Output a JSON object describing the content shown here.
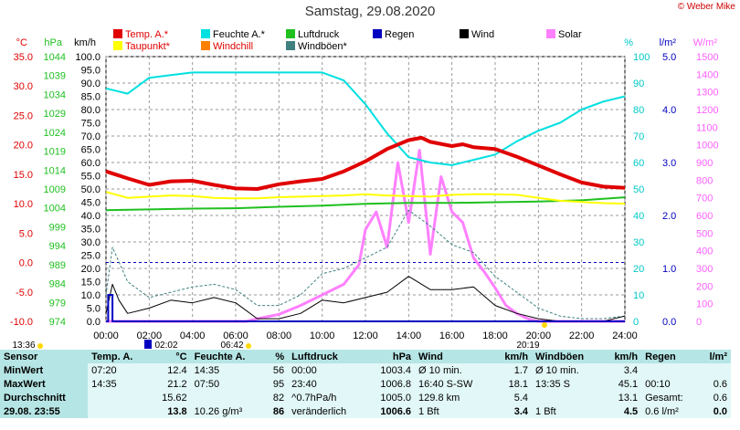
{
  "page": {
    "title": "Samstag, 29.08.2020",
    "credit": "© Weber Mike"
  },
  "legend": [
    {
      "label": "Temp. A.*",
      "color": "#e00000"
    },
    {
      "label": "Feuchte A.*",
      "color": "#00e0e0"
    },
    {
      "label": "Luftdruck",
      "color": "#20c020"
    },
    {
      "label": "Regen",
      "color": "#0000c0"
    },
    {
      "label": "Wind",
      "color": "#000000"
    },
    {
      "label": "Solar",
      "color": "#ff80ff"
    },
    {
      "label": "Taupunkt*",
      "color": "#ffff00"
    },
    {
      "label": "Windchill",
      "color": "#ff8000"
    },
    {
      "label": "Windböen*",
      "color": "#408080"
    }
  ],
  "units": {
    "temp": "°C",
    "hpa": "hPa",
    "kmh": "km/h",
    "pct": "%",
    "lm2": "l/m²",
    "wm2": "W/m²"
  },
  "chart_data": {
    "type": "line",
    "x_label_times": [
      "00:00",
      "02:00",
      "04:00",
      "06:00",
      "08:00",
      "10:00",
      "12:00",
      "14:00",
      "16:00",
      "18:00",
      "20:00",
      "22:00",
      "24:00"
    ],
    "markers": {
      "sunrise": "06:42",
      "sunset": "20:19",
      "left_time": "13:36",
      "marker_time": "02:02"
    },
    "axes": {
      "temp": {
        "label": "°C",
        "ticks": [
          "35.0",
          "30.0",
          "25.0",
          "20.0",
          "15.0",
          "10.0",
          "5.0",
          "0.0",
          "-5.0",
          "-10.0"
        ],
        "range": [
          -10,
          35
        ]
      },
      "hpa": {
        "label": "hPa",
        "ticks": [
          "1044",
          "1039",
          "1034",
          "1029",
          "1024",
          "1019",
          "1014",
          "1009",
          "1004",
          "999",
          "994",
          "989",
          "984",
          "979",
          "974"
        ],
        "range": [
          974,
          1044
        ]
      },
      "kmh": {
        "label": "km/h",
        "ticks": [
          "100.0",
          "95.0",
          "90.0",
          "85.0",
          "80.0",
          "75.0",
          "70.0",
          "65.0",
          "60.0",
          "55.0",
          "50.0",
          "45.0",
          "40.0",
          "35.0",
          "30.0",
          "25.0",
          "20.0",
          "15.0",
          "10.0",
          "5.0",
          "0.0"
        ],
        "range": [
          0,
          100
        ]
      },
      "pct": {
        "label": "%",
        "ticks": [
          "100",
          "90",
          "80",
          "70",
          "60",
          "50",
          "40",
          "30",
          "20",
          "10",
          "0"
        ],
        "range": [
          0,
          100
        ]
      },
      "rain": {
        "label": "l/m²",
        "ticks": [
          "5.0",
          "4.0",
          "3.0",
          "2.0",
          "1.0",
          "0.0"
        ],
        "range": [
          0,
          5
        ]
      },
      "solar": {
        "label": "W/m²",
        "ticks": [
          "1500",
          "1400",
          "1300",
          "1200",
          "1100",
          "1000",
          "900",
          "800",
          "700",
          "600",
          "500",
          "400",
          "300",
          "200",
          "100",
          "0"
        ],
        "range": [
          0,
          1500
        ]
      }
    },
    "series": [
      {
        "name": "Temp. A.*",
        "axis": "temp",
        "color": "#e00000",
        "width": 4,
        "x": [
          0,
          1,
          2,
          3,
          4,
          5,
          6,
          7,
          8,
          9,
          10,
          11,
          12,
          13,
          14,
          14.6,
          15,
          16,
          16.5,
          17,
          18,
          19,
          20,
          21,
          22,
          23,
          24
        ],
        "y": [
          15.5,
          14.3,
          13.2,
          13.8,
          13.9,
          13.2,
          12.6,
          12.5,
          13.3,
          13.8,
          14.2,
          15.5,
          17.2,
          19.3,
          20.8,
          21.2,
          20.5,
          19.8,
          20.1,
          19.6,
          19.3,
          18.0,
          16.5,
          15.0,
          13.6,
          12.9,
          12.7
        ]
      },
      {
        "name": "Taupunkt*",
        "axis": "temp",
        "color": "#ffff00",
        "width": 2,
        "x": [
          0,
          1,
          2,
          3,
          4,
          5,
          6,
          7,
          8,
          9,
          10,
          11,
          12,
          13,
          14,
          15,
          16,
          17,
          18,
          19,
          20,
          21,
          22,
          23,
          24
        ],
        "y": [
          12.0,
          11.0,
          11.2,
          11.4,
          11.3,
          11.0,
          10.9,
          10.9,
          11.1,
          11.2,
          11.3,
          11.4,
          11.6,
          11.4,
          11.3,
          11.2,
          11.5,
          11.6,
          11.6,
          11.5,
          11.0,
          10.5,
          10.3,
          10.1,
          10.0
        ]
      },
      {
        "name": "Luftdruck",
        "axis": "hpa",
        "color": "#20c020",
        "width": 2,
        "x": [
          0,
          2,
          4,
          6,
          8,
          10,
          12,
          14,
          16,
          18,
          20,
          22,
          24
        ],
        "y": [
          1003.4,
          1003.6,
          1003.8,
          1003.9,
          1004.3,
          1004.6,
          1005.1,
          1005.3,
          1005.3,
          1005.5,
          1005.7,
          1006.0,
          1006.8
        ]
      },
      {
        "name": "Feuchte A.*",
        "axis": "pct",
        "color": "#00e0e0",
        "width": 2,
        "x": [
          0,
          1,
          2,
          3,
          4,
          6,
          8,
          10,
          11,
          12,
          13,
          14,
          15,
          16,
          17,
          18,
          19,
          20,
          21,
          22,
          23,
          24
        ],
        "y": [
          88,
          86,
          92,
          93,
          94,
          94,
          94,
          94,
          91,
          82,
          71,
          62,
          60,
          59,
          61,
          63,
          68,
          72,
          75,
          80,
          83,
          85
        ]
      },
      {
        "name": "Windböen*",
        "axis": "kmh",
        "color": "#408080",
        "width": 1,
        "dash": "3,2",
        "x": [
          0,
          0.3,
          1,
          2,
          3,
          4,
          5,
          6,
          7,
          8,
          9,
          10,
          11,
          12,
          13,
          14,
          15,
          16,
          17,
          18,
          19,
          20,
          21,
          22,
          23,
          24
        ],
        "y": [
          10,
          28,
          15,
          9,
          11,
          13,
          14,
          12,
          6,
          6,
          10,
          18,
          20,
          24,
          28,
          42,
          36,
          29,
          26,
          17,
          11,
          5,
          2,
          1,
          1,
          2
        ]
      },
      {
        "name": "Wind",
        "axis": "kmh",
        "color": "#000000",
        "width": 1,
        "x": [
          0,
          0.3,
          0.6,
          1,
          2,
          3,
          4,
          5,
          6,
          7,
          8,
          9,
          10,
          11,
          12,
          13,
          14,
          15,
          16,
          17,
          18,
          19,
          20,
          21,
          22,
          23,
          24
        ],
        "y": [
          3,
          14,
          8,
          3,
          5,
          8,
          7,
          9,
          7,
          1,
          1,
          3,
          8,
          7,
          9,
          11,
          17,
          12,
          12,
          13,
          6,
          3,
          1,
          0,
          0,
          0,
          2
        ]
      },
      {
        "name": "Solar",
        "axis": "solar",
        "color": "#ff80ff",
        "width": 3,
        "x": [
          0,
          6.5,
          7,
          8,
          9,
          10,
          11,
          11.7,
          12,
          12.5,
          13,
          13.5,
          14,
          14.5,
          15,
          15.5,
          16,
          16.5,
          17,
          17.5,
          18,
          18.5,
          19,
          19.5,
          20,
          24
        ],
        "y": [
          0,
          0,
          15,
          40,
          90,
          150,
          210,
          320,
          520,
          620,
          420,
          900,
          560,
          970,
          380,
          820,
          620,
          560,
          360,
          280,
          190,
          90,
          45,
          15,
          0,
          0
        ]
      },
      {
        "name": "Regen",
        "axis": "rain",
        "color": "#0000c0",
        "width": 2,
        "x": [
          0,
          0.1,
          0.1,
          0.3,
          0.3,
          24
        ],
        "y": [
          0,
          0,
          0.5,
          0.5,
          0,
          0
        ]
      }
    ],
    "extremes": {
      "temp_min": 12.4,
      "temp_max": 21.2,
      "hum_min": 56,
      "hum_max": 95
    },
    "grid": true
  },
  "summary": {
    "headers": [
      "Sensor",
      "Temp. A.",
      "°C",
      "Feuchte A.",
      "%",
      "Luftdruck",
      "hPa",
      "Wind",
      "km/h",
      "Windböen",
      "km/h",
      "Regen",
      "l/m²"
    ],
    "rows": [
      [
        "MinWert",
        "07:20",
        "12.4",
        "14:35",
        "56",
        "00:00",
        "1003.4",
        "Ø 10 min.",
        "1.7",
        "Ø 10 min.",
        "3.4",
        "",
        ""
      ],
      [
        "MaxWert",
        "14:35",
        "21.2",
        "07:50",
        "95",
        "23:40",
        "1006.8",
        "16:40   S-SW",
        "18.1",
        "13:35   S",
        "45.1",
        "00:10",
        "0.6"
      ],
      [
        "Durchschnitt",
        "",
        "15.62",
        "",
        "82",
        "^0.7hPa/h",
        "1005.0",
        "129.8 km",
        "5.4",
        "",
        "13.1",
        "Gesamt:",
        "0.6"
      ],
      [
        "29.08. 23:55",
        "",
        "13.8",
        "10.26 g/m³",
        "86",
        "veränderlich",
        "1006.6",
        "1 Bft",
        "3.4",
        "1 Bft",
        "4.5",
        "0.6 l/m²",
        "0.0"
      ]
    ]
  }
}
